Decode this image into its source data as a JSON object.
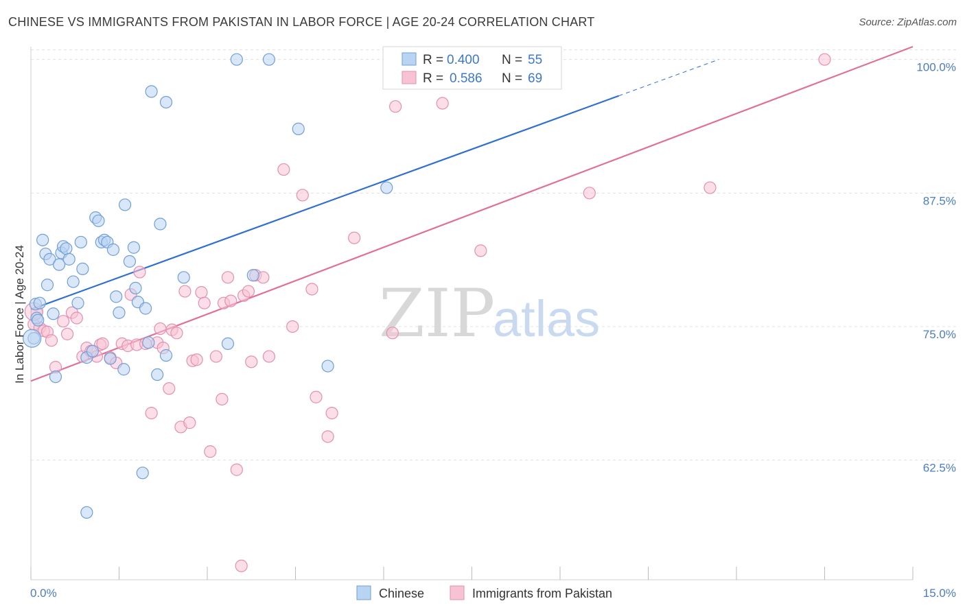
{
  "title": "CHINESE VS IMMIGRANTS FROM PAKISTAN IN LABOR FORCE | AGE 20-24 CORRELATION CHART",
  "source": "Source: ZipAtlas.com",
  "watermark": {
    "zip": "ZIP",
    "atlas": "atlas"
  },
  "colors": {
    "chinese_fill": "#b9d3f2",
    "chinese_stroke": "#6f9fd8",
    "chinese_line": "#2f6fcf",
    "pakistan_fill": "#f7c3d4",
    "pakistan_stroke": "#e58fb0",
    "pakistan_line": "#e07098",
    "tick_label": "#4a7cc9",
    "grid": "#e0e0e0"
  },
  "legend": {
    "rows": [
      {
        "r_label": "R =",
        "r_value": "0.400",
        "n_label": "N =",
        "n_value": "55"
      },
      {
        "r_label": "R =",
        "r_value": "0.586",
        "n_label": "N =",
        "n_value": "69"
      }
    ]
  },
  "chart_data": {
    "type": "scatter",
    "title": "CHINESE VS IMMIGRANTS FROM PAKISTAN IN LABOR FORCE | AGE 20-24 CORRELATION CHART",
    "xlabel": "",
    "ylabel": "In Labor Force | Age 20-24",
    "xlim": [
      0,
      15
    ],
    "ylim": [
      51.3,
      101.2
    ],
    "x_tick_labels": [
      "0.0%",
      "15.0%"
    ],
    "y_ticks": [
      62.5,
      75.0,
      87.5,
      100.0
    ],
    "y_tick_labels": [
      "62.5%",
      "75.0%",
      "87.5%",
      "100.0%"
    ],
    "grid": true,
    "legend_position": "top-center",
    "series": [
      {
        "name": "Chinese",
        "R": 0.4,
        "N": 55,
        "trend": {
          "x0": 0.0,
          "y0": 76.6,
          "x1": 10.0,
          "y1": 96.6,
          "dash_to_x": 11.7
        },
        "points": [
          [
            0.05,
            73.9
          ],
          [
            0.08,
            77.1
          ],
          [
            0.1,
            75.8
          ],
          [
            0.15,
            77.2
          ],
          [
            0.2,
            83.1
          ],
          [
            0.25,
            81.8
          ],
          [
            0.28,
            78.9
          ],
          [
            0.32,
            81.3
          ],
          [
            0.38,
            76.2
          ],
          [
            0.42,
            70.3
          ],
          [
            0.48,
            80.8
          ],
          [
            0.52,
            81.9
          ],
          [
            0.55,
            82.5
          ],
          [
            0.6,
            82.3
          ],
          [
            0.65,
            81.3
          ],
          [
            0.72,
            79.2
          ],
          [
            0.8,
            77.2
          ],
          [
            0.85,
            82.9
          ],
          [
            0.88,
            80.4
          ],
          [
            0.95,
            72.1
          ],
          [
            1.05,
            72.7
          ],
          [
            1.1,
            85.2
          ],
          [
            1.15,
            84.9
          ],
          [
            1.2,
            82.9
          ],
          [
            1.25,
            83.1
          ],
          [
            1.3,
            82.9
          ],
          [
            1.35,
            72.0
          ],
          [
            1.4,
            82.2
          ],
          [
            1.45,
            77.8
          ],
          [
            1.5,
            76.3
          ],
          [
            1.58,
            71.0
          ],
          [
            1.6,
            86.4
          ],
          [
            1.68,
            81.1
          ],
          [
            1.75,
            82.4
          ],
          [
            1.78,
            78.6
          ],
          [
            1.82,
            77.3
          ],
          [
            1.9,
            61.3
          ],
          [
            1.95,
            76.7
          ],
          [
            2.0,
            73.5
          ],
          [
            2.05,
            97.0
          ],
          [
            2.15,
            70.5
          ],
          [
            2.2,
            84.6
          ],
          [
            2.3,
            72.3
          ],
          [
            2.6,
            79.6
          ],
          [
            3.35,
            73.4
          ],
          [
            3.5,
            100.0
          ],
          [
            3.78,
            79.8
          ],
          [
            4.05,
            100.0
          ],
          [
            4.55,
            93.5
          ],
          [
            5.05,
            71.3
          ],
          [
            6.05,
            88.0
          ],
          [
            8.35,
            100.0
          ],
          [
            0.12,
            75.6
          ],
          [
            0.95,
            57.6
          ],
          [
            2.3,
            96.0
          ]
        ]
      },
      {
        "name": "Immigrants from Pakistan",
        "R": 0.586,
        "N": 69,
        "trend": {
          "x0": 0.0,
          "y0": 69.9,
          "x1": 15.0,
          "y1": 101.2
        },
        "points": [
          [
            0.05,
            75.2
          ],
          [
            0.1,
            76.3
          ],
          [
            0.15,
            74.9
          ],
          [
            0.22,
            74.6
          ],
          [
            0.28,
            74.5
          ],
          [
            0.35,
            73.7
          ],
          [
            0.42,
            71.2
          ],
          [
            0.55,
            75.5
          ],
          [
            0.62,
            74.3
          ],
          [
            0.7,
            76.3
          ],
          [
            0.78,
            75.8
          ],
          [
            0.88,
            72.2
          ],
          [
            0.95,
            73.0
          ],
          [
            1.02,
            72.7
          ],
          [
            1.12,
            72.2
          ],
          [
            1.18,
            73.3
          ],
          [
            1.22,
            73.4
          ],
          [
            1.35,
            72.1
          ],
          [
            1.45,
            71.6
          ],
          [
            1.55,
            73.4
          ],
          [
            1.65,
            73.2
          ],
          [
            1.7,
            78.0
          ],
          [
            1.8,
            73.3
          ],
          [
            1.85,
            80.1
          ],
          [
            1.95,
            73.4
          ],
          [
            2.05,
            66.9
          ],
          [
            2.15,
            73.5
          ],
          [
            2.2,
            74.8
          ],
          [
            2.25,
            73.0
          ],
          [
            2.35,
            69.2
          ],
          [
            2.4,
            74.7
          ],
          [
            2.48,
            74.4
          ],
          [
            2.55,
            65.6
          ],
          [
            2.62,
            78.3
          ],
          [
            2.7,
            66.0
          ],
          [
            2.75,
            71.8
          ],
          [
            2.82,
            71.9
          ],
          [
            2.9,
            78.2
          ],
          [
            2.95,
            77.2
          ],
          [
            3.05,
            63.3
          ],
          [
            3.15,
            72.2
          ],
          [
            3.25,
            68.2
          ],
          [
            3.28,
            77.2
          ],
          [
            3.35,
            79.6
          ],
          [
            3.4,
            77.4
          ],
          [
            3.5,
            61.6
          ],
          [
            3.58,
            52.6
          ],
          [
            3.62,
            77.9
          ],
          [
            3.7,
            78.3
          ],
          [
            3.75,
            71.7
          ],
          [
            3.82,
            79.8
          ],
          [
            3.95,
            79.6
          ],
          [
            4.05,
            72.2
          ],
          [
            4.3,
            89.7
          ],
          [
            4.45,
            75.0
          ],
          [
            4.62,
            87.3
          ],
          [
            4.78,
            78.5
          ],
          [
            4.85,
            68.4
          ],
          [
            5.05,
            64.7
          ],
          [
            5.12,
            66.9
          ],
          [
            5.5,
            83.3
          ],
          [
            6.15,
            74.4
          ],
          [
            6.2,
            95.6
          ],
          [
            6.6,
            100.0
          ],
          [
            7.0,
            95.9
          ],
          [
            7.65,
            82.1
          ],
          [
            9.5,
            87.5
          ],
          [
            11.55,
            88.0
          ],
          [
            13.5,
            100.0
          ]
        ]
      }
    ]
  }
}
